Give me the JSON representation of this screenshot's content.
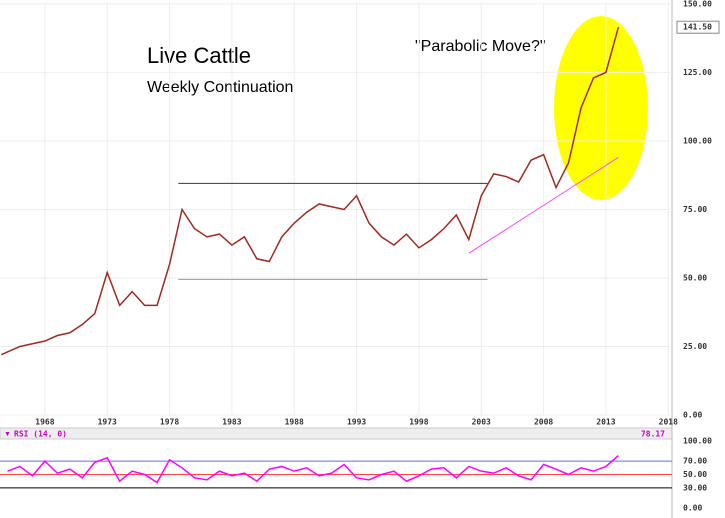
{
  "chart_data": [
    {
      "type": "line",
      "title": "Live Cattle",
      "subtitle": "Weekly Continuation",
      "annotation": "\"Parabolic Move?\"",
      "x": [
        1964.5,
        1966,
        1968,
        1969,
        1970,
        1971,
        1972,
        1973,
        1974,
        1975,
        1976,
        1977,
        1978,
        1979,
        1980,
        1981,
        1982,
        1983,
        1984,
        1985,
        1986,
        1987,
        1988,
        1989,
        1990,
        1991,
        1992,
        1993,
        1994,
        1995,
        1996,
        1997,
        1998,
        1999,
        2000,
        2001,
        2002,
        2003,
        2004,
        2005,
        2006,
        2007,
        2008,
        2009,
        2010,
        2011,
        2012,
        2013,
        2014
      ],
      "values": [
        22,
        25,
        27,
        29,
        30,
        33,
        37,
        52,
        40,
        45,
        40,
        40,
        55,
        75,
        68,
        65,
        66,
        62,
        65,
        57,
        56,
        65,
        70,
        74,
        77,
        76,
        75,
        80,
        70,
        65,
        62,
        66,
        61,
        64,
        68,
        73,
        64,
        80,
        88,
        87,
        85,
        93,
        95,
        83,
        92,
        112,
        123,
        125,
        141.5
      ],
      "color": "#a02a22",
      "xlim": [
        1964.4,
        2018.3
      ],
      "xticks": [
        1968,
        1973,
        1978,
        1983,
        1988,
        1993,
        1998,
        2003,
        2008,
        2013,
        2018
      ],
      "ylim": [
        0,
        150.7
      ],
      "yticks": [
        {
          "value": 0,
          "label": "0.00"
        },
        {
          "value": 25,
          "label": "25.00"
        },
        {
          "value": 50,
          "label": "50.00"
        },
        {
          "value": 75,
          "label": "75.00"
        },
        {
          "value": 100,
          "label": "100.00"
        },
        {
          "value": 125,
          "label": "125.00"
        },
        {
          "value": 150,
          "label": "150.00"
        }
      ],
      "last_value": {
        "value": 141.5,
        "label": "141.50"
      },
      "reference_lines": [
        {
          "value": 84.5,
          "x": [
            1978.7,
            2003.5
          ],
          "color": "#333366"
        },
        {
          "value": 49.5,
          "x": [
            1978.7,
            2003.5
          ],
          "color": "#999999"
        }
      ],
      "trendline": {
        "x": [
          2002,
          2014
        ],
        "values": [
          59,
          94
        ],
        "color": "#ff44ff"
      },
      "grid": true
    },
    {
      "type": "line",
      "title": "RSI (14, 0)",
      "last_value": 78.17,
      "x": [
        1965,
        1966,
        1967,
        1968,
        1969,
        1970,
        1971,
        1972,
        1973,
        1974,
        1975,
        1976,
        1977,
        1978,
        1979,
        1980,
        1981,
        1982,
        1983,
        1984,
        1985,
        1986,
        1987,
        1988,
        1989,
        1990,
        1991,
        1992,
        1993,
        1994,
        1995,
        1996,
        1997,
        1998,
        1999,
        2000,
        2001,
        2002,
        2003,
        2004,
        2005,
        2006,
        2007,
        2008,
        2009,
        2010,
        2011,
        2012,
        2013,
        2014
      ],
      "values": [
        55,
        62,
        48,
        70,
        52,
        58,
        45,
        68,
        75,
        40,
        55,
        50,
        38,
        72,
        60,
        45,
        42,
        55,
        48,
        52,
        40,
        58,
        62,
        55,
        60,
        48,
        52,
        65,
        45,
        42,
        50,
        55,
        40,
        48,
        58,
        60,
        45,
        62,
        55,
        52,
        60,
        48,
        42,
        65,
        58,
        50,
        60,
        55,
        62,
        78.17
      ],
      "color": "#ff00ff",
      "xlim": [
        1964.4,
        2018.3
      ],
      "ylim": [
        0,
        100
      ],
      "yticks": [
        {
          "value": 0,
          "label": "0.00"
        },
        {
          "value": 30,
          "label": "30.00"
        },
        {
          "value": 50,
          "label": "50.00"
        },
        {
          "value": 70,
          "label": "70.00"
        },
        {
          "value": 100,
          "label": "100.00"
        }
      ],
      "levels": [
        {
          "value": 70,
          "color": "#6666ff"
        },
        {
          "value": 50,
          "color": "#ff4444"
        },
        {
          "value": 30,
          "color": "#000000"
        }
      ]
    }
  ]
}
